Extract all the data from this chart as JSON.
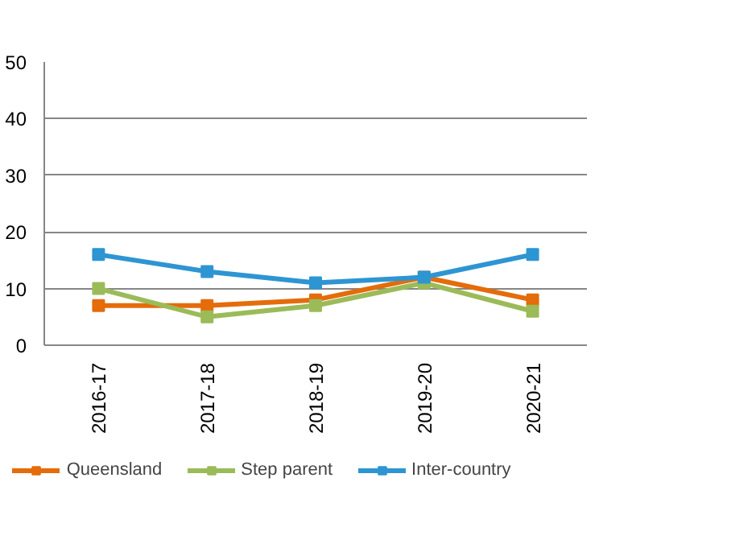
{
  "chart_data": {
    "type": "line",
    "categories": [
      "2016-17",
      "2017-18",
      "2018-19",
      "2019-20",
      "2020-21"
    ],
    "series": [
      {
        "name": "Queensland",
        "color": "#e46c0a",
        "values": [
          7,
          7,
          8,
          12,
          8
        ]
      },
      {
        "name": "Step parent",
        "color": "#9bbb59",
        "values": [
          10,
          5,
          7,
          11,
          6
        ]
      },
      {
        "name": "Inter-country",
        "color": "#2e95d3",
        "values": [
          16,
          13,
          11,
          12,
          16
        ]
      }
    ],
    "ylim": [
      0,
      50
    ],
    "yticks": [
      0,
      10,
      20,
      30,
      40,
      50
    ],
    "grid": "y",
    "legend": "bottom",
    "marker": "square",
    "line_style": "solid"
  }
}
